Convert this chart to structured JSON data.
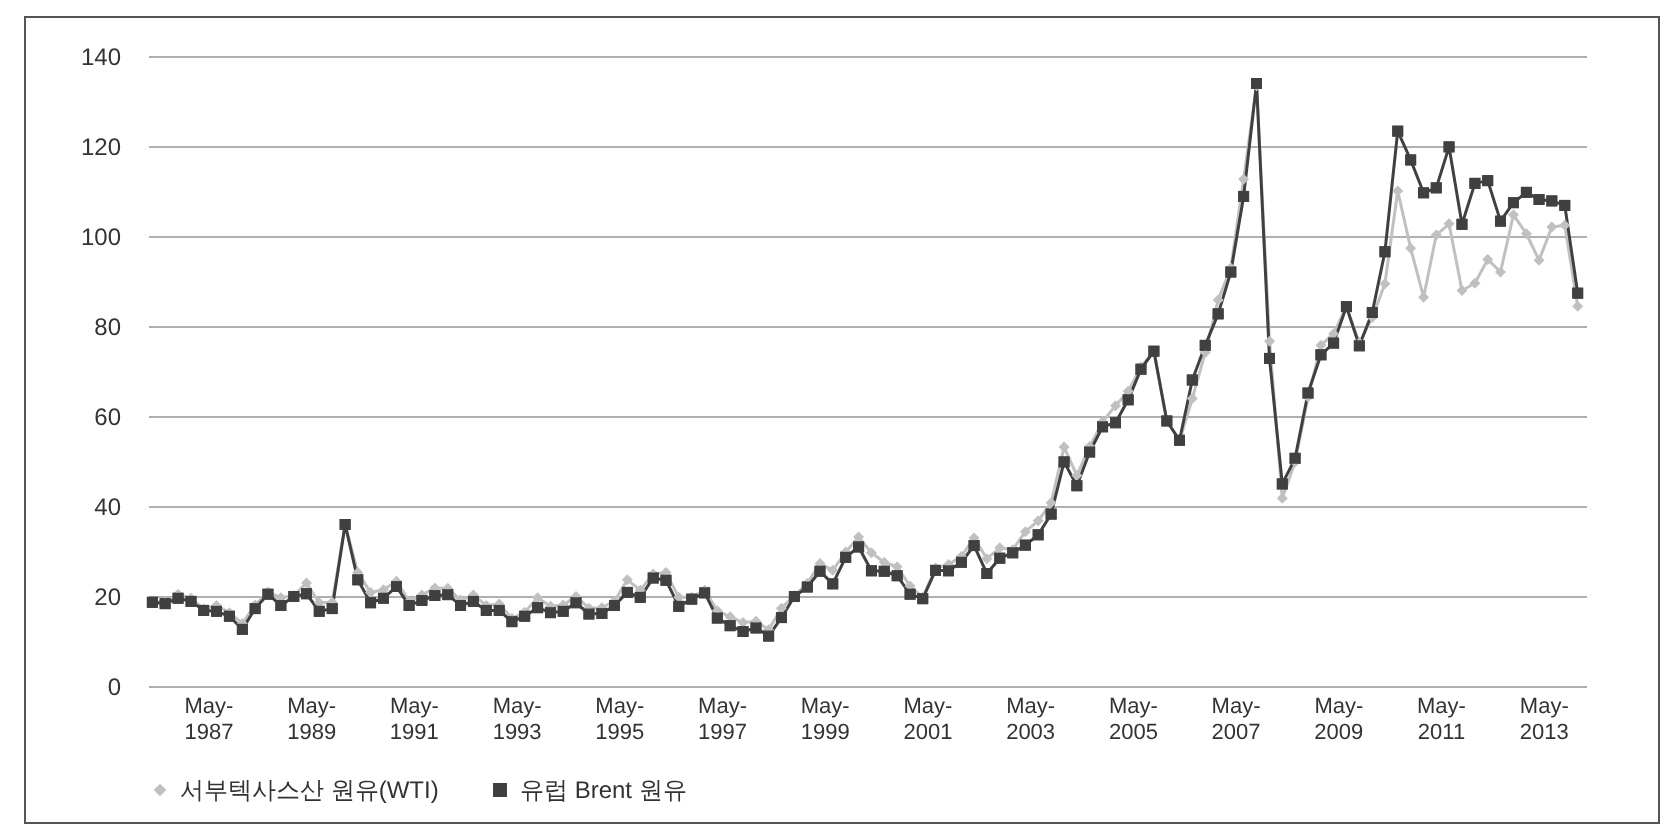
{
  "chart_data": {
    "type": "line",
    "x": [
      "1986-04",
      "1986-07",
      "1986-10",
      "1987-01",
      "1987-04",
      "1987-07",
      "1987-10",
      "1988-01",
      "1988-04",
      "1988-07",
      "1988-10",
      "1989-01",
      "1989-04",
      "1989-07",
      "1989-10",
      "1990-01",
      "1990-04",
      "1990-07",
      "1990-10",
      "1991-01",
      "1991-04",
      "1991-07",
      "1991-10",
      "1992-01",
      "1992-04",
      "1992-07",
      "1992-10",
      "1993-01",
      "1993-04",
      "1993-07",
      "1993-10",
      "1994-01",
      "1994-04",
      "1994-07",
      "1994-10",
      "1995-01",
      "1995-04",
      "1995-07",
      "1995-10",
      "1996-01",
      "1996-04",
      "1996-07",
      "1996-10",
      "1997-01",
      "1997-04",
      "1997-07",
      "1997-10",
      "1998-01",
      "1998-04",
      "1998-07",
      "1998-10",
      "1999-01",
      "1999-04",
      "1999-07",
      "1999-10",
      "2000-01",
      "2000-04",
      "2000-07",
      "2000-10",
      "2001-01",
      "2001-04",
      "2001-07",
      "2001-10",
      "2002-01",
      "2002-04",
      "2002-07",
      "2002-10",
      "2003-01",
      "2003-04",
      "2003-07",
      "2003-10",
      "2004-01",
      "2004-04",
      "2004-07",
      "2004-10",
      "2005-01",
      "2005-04",
      "2005-07",
      "2005-10",
      "2006-01",
      "2006-04",
      "2006-07",
      "2006-10",
      "2007-01",
      "2007-04",
      "2007-07",
      "2007-10",
      "2008-01",
      "2008-04",
      "2008-07",
      "2008-10",
      "2009-01",
      "2009-04",
      "2009-07",
      "2009-10",
      "2010-01",
      "2010-04",
      "2010-07",
      "2010-10",
      "2011-01",
      "2011-04",
      "2011-07",
      "2011-10",
      "2012-01",
      "2012-04",
      "2012-07",
      "2012-10",
      "2013-01",
      "2013-04",
      "2013-07",
      "2013-10",
      "2014-01"
    ],
    "series": [
      {
        "name": "서부텍사스산 원유(WTI)",
        "color": "#c0c0c0",
        "marker": "diamond",
        "values": [
          18.7,
          18.7,
          20.4,
          19.5,
          17.1,
          17.9,
          16.3,
          13.9,
          18.0,
          20.9,
          19.6,
          20.1,
          22.9,
          18.5,
          18.6,
          35.9,
          25.2,
          20.8,
          21.4,
          23.3,
          18.8,
          20.2,
          21.8,
          21.7,
          19.1,
          20.2,
          17.9,
          18.2,
          15.0,
          16.4,
          19.6,
          17.7,
          18.0,
          19.9,
          17.3,
          17.4,
          18.9,
          23.6,
          21.3,
          24.9,
          25.2,
          19.7,
          19.7,
          21.3,
          16.7,
          15.4,
          14.1,
          14.4,
          12.5,
          17.3,
          20.1,
          22.8,
          27.2,
          25.7,
          29.8,
          33.1,
          29.6,
          27.5,
          26.5,
          22.2,
          19.7,
          26.2,
          27.0,
          28.8,
          32.9,
          28.3,
          30.7,
          30.3,
          34.3,
          36.7,
          40.7,
          53.1,
          46.8,
          53.2,
          58.7,
          62.3,
          65.5,
          70.9,
          74.4,
          58.9,
          54.5,
          63.9,
          74.1,
          85.8,
          92.9,
          112.6,
          133.4,
          76.6,
          41.7,
          49.8,
          64.2,
          75.7,
          78.3,
          84.3,
          76.3,
          81.9,
          89.4,
          110.0,
          97.3,
          86.4,
          100.2,
          102.7,
          87.9,
          89.5,
          94.8,
          92.0,
          104.7,
          100.5,
          94.6,
          102.0,
          102.4,
          84.4
        ]
      },
      {
        "name": "유럽 Brent 원유",
        "color": "#404040",
        "marker": "square",
        "values": [
          18.6,
          18.3,
          19.5,
          18.8,
          16.8,
          16.6,
          15.5,
          12.6,
          17.2,
          20.4,
          17.9,
          19.9,
          20.5,
          16.6,
          17.2,
          35.9,
          23.6,
          18.5,
          19.5,
          22.1,
          17.9,
          19.0,
          20.1,
          20.3,
          17.9,
          18.8,
          16.8,
          16.8,
          14.3,
          15.5,
          17.4,
          16.3,
          16.6,
          18.5,
          16.0,
          16.1,
          17.9,
          20.8,
          19.7,
          24.0,
          23.5,
          17.7,
          19.3,
          20.7,
          15.1,
          13.4,
          12.1,
          12.9,
          11.1,
          15.2,
          19.9,
          22.0,
          25.5,
          22.7,
          28.6,
          30.9,
          25.6,
          25.5,
          24.5,
          20.4,
          19.4,
          25.7,
          25.6,
          27.5,
          31.2,
          25.0,
          28.4,
          29.6,
          31.3,
          33.6,
          38.2,
          49.8,
          44.5,
          52.0,
          57.6,
          58.5,
          63.6,
          70.4,
          74.4,
          58.9,
          54.6,
          68.0,
          75.7,
          82.7,
          92.0,
          108.8,
          133.9,
          72.8,
          44.9,
          50.6,
          65.1,
          73.6,
          76.2,
          84.3,
          75.6,
          83.0,
          96.5,
          123.3,
          116.9,
          109.6,
          110.7,
          119.8,
          102.6,
          111.7,
          112.3,
          103.3,
          107.4,
          109.7,
          108.1,
          107.8,
          106.8,
          87.3
        ]
      }
    ],
    "xlim": [
      "1986-03",
      "2014-03"
    ],
    "xticks": [
      {
        "value": "1987-05",
        "label": "May-1987"
      },
      {
        "value": "1989-05",
        "label": "May-1989"
      },
      {
        "value": "1991-05",
        "label": "May-1991"
      },
      {
        "value": "1993-05",
        "label": "May-1993"
      },
      {
        "value": "1995-05",
        "label": "May-1995"
      },
      {
        "value": "1997-05",
        "label": "May-1997"
      },
      {
        "value": "1999-05",
        "label": "May-1999"
      },
      {
        "value": "2001-05",
        "label": "May-2001"
      },
      {
        "value": "2003-05",
        "label": "May-2003"
      },
      {
        "value": "2005-05",
        "label": "May-2005"
      },
      {
        "value": "2007-05",
        "label": "May-2007"
      },
      {
        "value": "2009-05",
        "label": "May-2009"
      },
      {
        "value": "2011-05",
        "label": "May-2011"
      },
      {
        "value": "2013-05",
        "label": "May-2013"
      }
    ],
    "ylim": [
      0,
      140
    ],
    "yticks": [
      0,
      20,
      40,
      60,
      80,
      100,
      120,
      140
    ],
    "grid": "y",
    "legend": "bottom"
  }
}
